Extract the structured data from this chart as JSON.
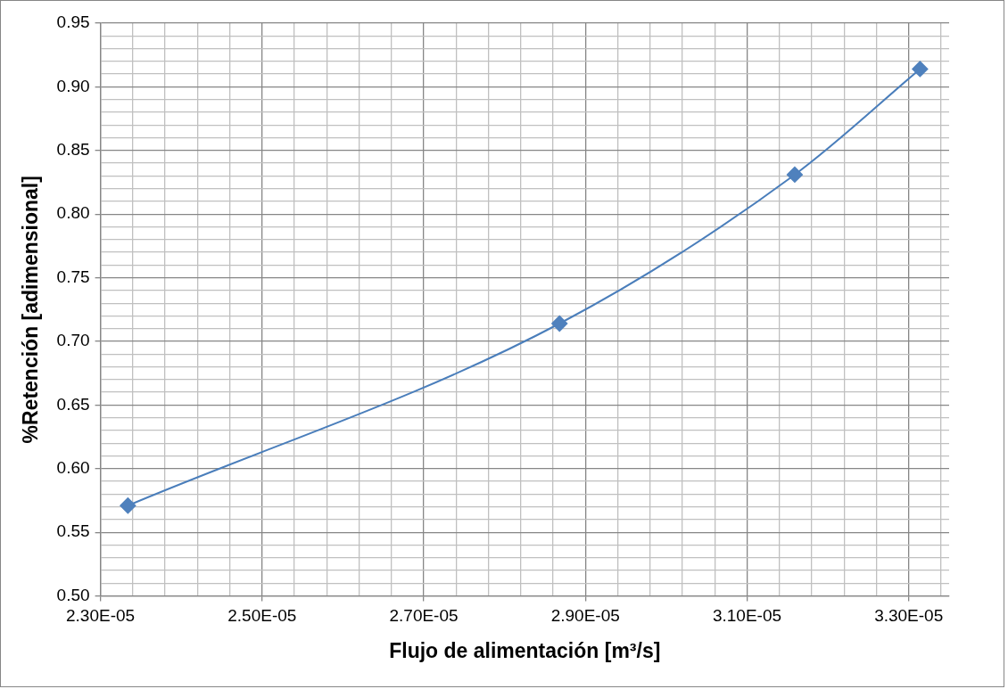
{
  "chart_data": {
    "type": "line",
    "xlabel": "Flujo de alimentación [m³/s]",
    "ylabel": "%Retención [adimensional]",
    "x": [
      2.334e-05,
      2.868e-05,
      3.159e-05,
      3.314e-05
    ],
    "series": [
      {
        "color": "#4a7ebb",
        "values": [
          0.571,
          0.714,
          0.831,
          0.914
        ]
      }
    ],
    "xlim": [
      2.3e-05,
      3.35e-05
    ],
    "xticks": [
      {
        "value": 2.3e-05,
        "label": "2.30E-05"
      },
      {
        "value": 2.34e-05,
        "label": null
      },
      {
        "value": 2.38e-05,
        "label": null
      },
      {
        "value": 2.42e-05,
        "label": null
      },
      {
        "value": 2.46e-05,
        "label": null
      },
      {
        "value": 2.5e-05,
        "label": "2.50E-05"
      },
      {
        "value": 2.54e-05,
        "label": null
      },
      {
        "value": 2.58e-05,
        "label": null
      },
      {
        "value": 2.62e-05,
        "label": null
      },
      {
        "value": 2.66e-05,
        "label": null
      },
      {
        "value": 2.7e-05,
        "label": "2.70E-05"
      },
      {
        "value": 2.74e-05,
        "label": null
      },
      {
        "value": 2.78e-05,
        "label": null
      },
      {
        "value": 2.82e-05,
        "label": null
      },
      {
        "value": 2.86e-05,
        "label": null
      },
      {
        "value": 2.9e-05,
        "label": "2.90E-05"
      },
      {
        "value": 2.94e-05,
        "label": null
      },
      {
        "value": 2.98e-05,
        "label": null
      },
      {
        "value": 3.02e-05,
        "label": null
      },
      {
        "value": 3.06e-05,
        "label": null
      },
      {
        "value": 3.1e-05,
        "label": "3.10E-05"
      },
      {
        "value": 3.14e-05,
        "label": null
      },
      {
        "value": 3.18e-05,
        "label": null
      },
      {
        "value": 3.22e-05,
        "label": null
      },
      {
        "value": 3.26e-05,
        "label": null
      },
      {
        "value": 3.3e-05,
        "label": "3.30E-05"
      },
      {
        "value": 3.34e-05,
        "label": null
      }
    ],
    "ylim": [
      0.5,
      0.95
    ],
    "yticks": [
      {
        "value": 0.5,
        "label": "0.50"
      },
      {
        "value": 0.51,
        "label": null
      },
      {
        "value": 0.52,
        "label": null
      },
      {
        "value": 0.53,
        "label": null
      },
      {
        "value": 0.54,
        "label": null
      },
      {
        "value": 0.55,
        "label": "0.55"
      },
      {
        "value": 0.56,
        "label": null
      },
      {
        "value": 0.57,
        "label": null
      },
      {
        "value": 0.58,
        "label": null
      },
      {
        "value": 0.59,
        "label": null
      },
      {
        "value": 0.6,
        "label": "0.60"
      },
      {
        "value": 0.61,
        "label": null
      },
      {
        "value": 0.62,
        "label": null
      },
      {
        "value": 0.63,
        "label": null
      },
      {
        "value": 0.64,
        "label": null
      },
      {
        "value": 0.65,
        "label": "0.65"
      },
      {
        "value": 0.66,
        "label": null
      },
      {
        "value": 0.67,
        "label": null
      },
      {
        "value": 0.68,
        "label": null
      },
      {
        "value": 0.69,
        "label": null
      },
      {
        "value": 0.7,
        "label": "0.70"
      },
      {
        "value": 0.71,
        "label": null
      },
      {
        "value": 0.72,
        "label": null
      },
      {
        "value": 0.73,
        "label": null
      },
      {
        "value": 0.74,
        "label": null
      },
      {
        "value": 0.75,
        "label": "0.75"
      },
      {
        "value": 0.76,
        "label": null
      },
      {
        "value": 0.77,
        "label": null
      },
      {
        "value": 0.78,
        "label": null
      },
      {
        "value": 0.79,
        "label": null
      },
      {
        "value": 0.8,
        "label": "0.80"
      },
      {
        "value": 0.81,
        "label": null
      },
      {
        "value": 0.82,
        "label": null
      },
      {
        "value": 0.83,
        "label": null
      },
      {
        "value": 0.84,
        "label": null
      },
      {
        "value": 0.85,
        "label": "0.85"
      },
      {
        "value": 0.86,
        "label": null
      },
      {
        "value": 0.87,
        "label": null
      },
      {
        "value": 0.88,
        "label": null
      },
      {
        "value": 0.89,
        "label": null
      },
      {
        "value": 0.9,
        "label": "0.90"
      },
      {
        "value": 0.91,
        "label": null
      },
      {
        "value": 0.92,
        "label": null
      },
      {
        "value": 0.93,
        "label": null
      },
      {
        "value": 0.94,
        "label": null
      },
      {
        "value": 0.95,
        "label": "0.95"
      }
    ],
    "grid": true,
    "legend": false,
    "marker": "diamond",
    "line_style": "solid"
  }
}
